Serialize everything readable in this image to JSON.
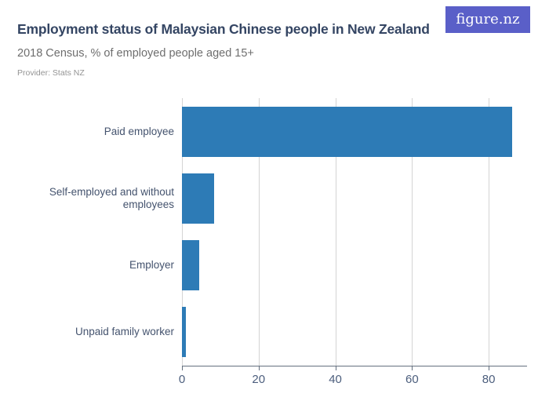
{
  "header": {
    "title": "Employment status of Malaysian Chinese people in New Zealand",
    "subtitle": "2018 Census, % of employed people aged 15+",
    "provider": "Provider: Stats NZ",
    "logo": {
      "text": "figure.nz",
      "background": "#5a5fc8",
      "color": "#ffffff"
    }
  },
  "chart_data": {
    "type": "bar",
    "orientation": "horizontal",
    "title": "Employment status of Malaysian Chinese people in New Zealand",
    "subtitle": "2018 Census, % of employed people aged 15+",
    "categories": [
      "Paid employee",
      "Self-employed and without employees",
      "Employer",
      "Unpaid family worker"
    ],
    "values": [
      86.2,
      8.4,
      4.5,
      1.0
    ],
    "xlabel": "",
    "ylabel": "",
    "xlim": [
      0,
      90
    ],
    "xticks": [
      0,
      20,
      40,
      60,
      80
    ],
    "unit": "%",
    "bar_color": "#2d7bb6",
    "grid": true,
    "legend": false
  }
}
